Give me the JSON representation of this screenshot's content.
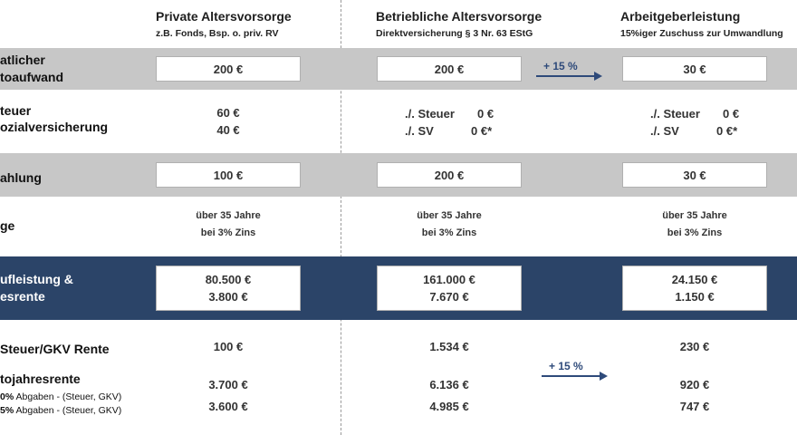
{
  "header": {
    "private": {
      "title": "Private Altersvorsorge",
      "subtitle": "z.B. Fonds, Bsp. o. priv. RV"
    },
    "company": {
      "title": "Betriebliche Altersvorsorge",
      "subtitle": "Direktversicherung § 3 Nr. 63 EStG"
    },
    "employer": {
      "title": "Arbeitgeberleistung",
      "subtitle": "15%iger  Zuschuss zur Umwandlung"
    }
  },
  "rows": {
    "gross": {
      "label_1": "atlicher",
      "label_2": "toaufwand",
      "private": "200 €",
      "company": "200 €",
      "employer": "30 €",
      "arrow": "+ 15 %"
    },
    "tax": {
      "label_1": "teuer",
      "label_2": "ozialversicherung",
      "private_1": "60 €",
      "private_2": "40 €",
      "company_1_label": "./. Steuer",
      "company_1_value": "0 €",
      "company_2_label": "./. SV",
      "company_2_value": "0 €*",
      "employer_1_label": "./. Steuer",
      "employer_1_value": "0 €",
      "employer_2_label": "./. SV",
      "employer_2_value": "0 €*"
    },
    "payment": {
      "label": "ahlung",
      "private": "100 €",
      "company": "200 €",
      "employer": "30 €"
    },
    "duration": {
      "label": "ge",
      "private_1": "über 35 Jahre",
      "private_2": "bei 3% Zins",
      "company_1": "über 35 Jahre",
      "company_2": "bei 3% Zins",
      "employer_1": "über 35 Jahre",
      "employer_2": "bei 3% Zins"
    },
    "result": {
      "label_1": "ufleistung &",
      "label_2": "esrente",
      "private_1": "80.500 €",
      "private_2": "3.800 €",
      "company_1": "161.000 €",
      "company_2": "7.670 €",
      "employer_1": "24.150 €",
      "employer_2": "1.150 €"
    },
    "net": {
      "label_1": "Steuer/GKV Rente",
      "label_2": "tojahresrente",
      "label_3_pct": "0%",
      "label_3_text": " Abgaben -  (Steuer, GKV)",
      "label_4_pct": "5%",
      "label_4_text": " Abgaben - (Steuer, GKV)",
      "private_1": "100 €",
      "private_2": "3.700 €",
      "private_3": "3.600 €",
      "company_1": "1.534 €",
      "company_2": "6.136 €",
      "company_3": "4.985 €",
      "employer_1": "230 €",
      "employer_2": "920 €",
      "employer_3": "747 €",
      "arrow": "+ 15 %"
    }
  },
  "colors": {
    "band_gray": "#c7c7c7",
    "band_navy": "#2b4468",
    "arrow": "#2e4a7a"
  }
}
